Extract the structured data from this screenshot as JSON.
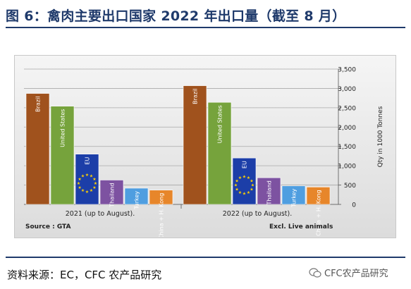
{
  "header": {
    "title": "图 6：禽肉主要出口国家 2022 年出口量（截至 8 月）"
  },
  "footer": {
    "source": "资料来源：EC，CFC 农产品研究",
    "watermark": "CFC农产品研究"
  },
  "chart_data": {
    "type": "bar",
    "groups": [
      "2021 (up to August).",
      "2022 (up to August)."
    ],
    "series": [
      {
        "name": "Brazil",
        "values": [
          2870,
          3070
        ],
        "color": "#a0521d"
      },
      {
        "name": "United States",
        "values": [
          2540,
          2640
        ],
        "color": "#76a33c"
      },
      {
        "name": "EU",
        "values": [
          1300,
          1200
        ],
        "color": "#1c3ea8"
      },
      {
        "name": "Thailand",
        "values": [
          630,
          690
        ],
        "color": "#7d52a1"
      },
      {
        "name": "Turkey",
        "values": [
          420,
          480
        ],
        "color": "#4f9ee0"
      },
      {
        "name": "China + H. Kong",
        "values": [
          370,
          450
        ],
        "color": "#e7862a"
      }
    ],
    "ylabel": "Qty in 1000 Tonnes",
    "ylim": [
      0,
      3500
    ],
    "yticks": [
      0,
      500,
      1000,
      1500,
      2000,
      2500,
      3000,
      3500
    ],
    "ytick_labels": [
      "0",
      "500",
      "1,000",
      "1,500",
      "2,000",
      "2,500",
      "3,000",
      "3,500"
    ],
    "grid": true,
    "notes": {
      "source": "Source : GTA",
      "excl": "Excl. Live animals"
    }
  }
}
